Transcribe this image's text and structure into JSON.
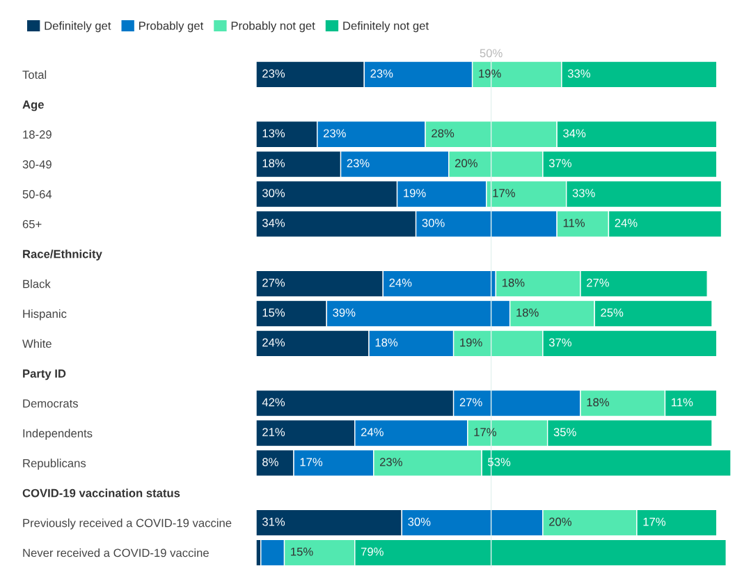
{
  "chart_data": {
    "type": "bar",
    "orientation": "horizontal",
    "stacked": true,
    "categories": [
      "Total",
      "Age",
      "18-29",
      "30-49",
      "50-64",
      "65+",
      "Race/Ethnicity",
      "Black",
      "Hispanic",
      "White",
      "Party ID",
      "Democrats",
      "Independents",
      "Republicans",
      "COVID-19 vaccination status",
      "Previously received a COVID-19 vaccine",
      "Never received a COVID-19 vaccine"
    ],
    "series": [
      {
        "name": "Definitely get",
        "color": "#003a63",
        "values": [
          23,
          null,
          13,
          18,
          30,
          34,
          null,
          27,
          15,
          24,
          null,
          42,
          21,
          8,
          null,
          31,
          1
        ],
        "value_labels": [
          "23%",
          null,
          "13%",
          "18%",
          "30%",
          "34%",
          null,
          "27%",
          "15%",
          "24%",
          null,
          "42%",
          "21%",
          "8%",
          null,
          "31%",
          null
        ]
      },
      {
        "name": "Probably get",
        "color": "#0077c8",
        "values": [
          23,
          null,
          23,
          23,
          19,
          30,
          null,
          24,
          39,
          18,
          null,
          27,
          24,
          17,
          null,
          30,
          5
        ],
        "value_labels": [
          "23%",
          null,
          "23%",
          "23%",
          "19%",
          "30%",
          null,
          "24%",
          "39%",
          "18%",
          null,
          "27%",
          "24%",
          "17%",
          null,
          "30%",
          null
        ]
      },
      {
        "name": "Probably not get",
        "color": "#52e8b0",
        "values": [
          19,
          null,
          28,
          20,
          17,
          11,
          null,
          18,
          18,
          19,
          null,
          18,
          17,
          23,
          null,
          20,
          15
        ],
        "value_labels": [
          "19%",
          null,
          "28%",
          "20%",
          "17%",
          "11%",
          null,
          "18%",
          "18%",
          "19%",
          null,
          "18%",
          "17%",
          "23%",
          null,
          "20%",
          "15%"
        ]
      },
      {
        "name": "Definitely not get",
        "color": "#00bf8a",
        "values": [
          33,
          null,
          34,
          37,
          33,
          24,
          null,
          27,
          25,
          37,
          null,
          11,
          35,
          53,
          null,
          17,
          79
        ],
        "value_labels": [
          "33%",
          null,
          "34%",
          "37%",
          "33%",
          "24%",
          null,
          "27%",
          "25%",
          "37%",
          null,
          "11%",
          "35%",
          "53%",
          null,
          "17%",
          "79%"
        ]
      }
    ],
    "xlim": [
      0,
      101
    ],
    "tick_labels": "y",
    "legend": "top left",
    "ref_lines": [
      {
        "axis": "x",
        "value": 50,
        "label": "50%",
        "color": "#e4f3f0"
      }
    ]
  }
}
